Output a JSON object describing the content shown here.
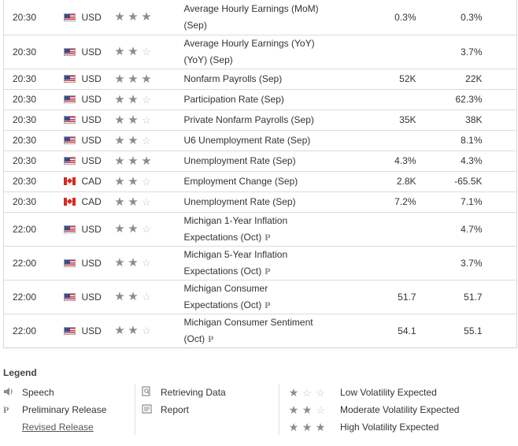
{
  "events": [
    {
      "time": "20:30",
      "currency": "USD",
      "flag": "us",
      "stars": 3,
      "event_l1": "Average Hourly Earnings (MoM)",
      "event_l2": "(Sep)",
      "prelim": false,
      "actual": "0.3%",
      "previous": "0.3%"
    },
    {
      "time": "20:30",
      "currency": "USD",
      "flag": "us",
      "stars": 2,
      "event_l1": "Average Hourly Earnings (YoY)",
      "event_l2": "(YoY) (Sep)",
      "prelim": false,
      "actual": "",
      "previous": "3.7%"
    },
    {
      "time": "20:30",
      "currency": "USD",
      "flag": "us",
      "stars": 3,
      "event_l1": "Nonfarm Payrolls (Sep)",
      "event_l2": "",
      "prelim": false,
      "actual": "52K",
      "previous": "22K"
    },
    {
      "time": "20:30",
      "currency": "USD",
      "flag": "us",
      "stars": 2,
      "event_l1": "Participation Rate (Sep)",
      "event_l2": "",
      "prelim": false,
      "actual": "",
      "previous": "62.3%"
    },
    {
      "time": "20:30",
      "currency": "USD",
      "flag": "us",
      "stars": 2,
      "event_l1": "Private Nonfarm Payrolls (Sep)",
      "event_l2": "",
      "prelim": false,
      "actual": "35K",
      "previous": "38K"
    },
    {
      "time": "20:30",
      "currency": "USD",
      "flag": "us",
      "stars": 2,
      "event_l1": "U6 Unemployment Rate (Sep)",
      "event_l2": "",
      "prelim": false,
      "actual": "",
      "previous": "8.1%"
    },
    {
      "time": "20:30",
      "currency": "USD",
      "flag": "us",
      "stars": 3,
      "event_l1": "Unemployment Rate (Sep)",
      "event_l2": "",
      "prelim": false,
      "actual": "4.3%",
      "previous": "4.3%"
    },
    {
      "time": "20:30",
      "currency": "CAD",
      "flag": "ca",
      "stars": 2,
      "event_l1": "Employment Change (Sep)",
      "event_l2": "",
      "prelim": false,
      "actual": "2.8K",
      "previous": "-65.5K"
    },
    {
      "time": "20:30",
      "currency": "CAD",
      "flag": "ca",
      "stars": 2,
      "event_l1": "Unemployment Rate (Sep)",
      "event_l2": "",
      "prelim": false,
      "actual": "7.2%",
      "previous": "7.1%"
    },
    {
      "time": "22:00",
      "currency": "USD",
      "flag": "us",
      "stars": 2,
      "event_l1": "Michigan 1-Year Inflation",
      "event_l2": "Expectations (Oct)",
      "prelim": true,
      "actual": "",
      "previous": "4.7%"
    },
    {
      "time": "22:00",
      "currency": "USD",
      "flag": "us",
      "stars": 2,
      "event_l1": "Michigan 5-Year Inflation",
      "event_l2": "Expectations (Oct)",
      "prelim": true,
      "actual": "",
      "previous": "3.7%"
    },
    {
      "time": "22:00",
      "currency": "USD",
      "flag": "us",
      "stars": 2,
      "event_l1": "Michigan Consumer",
      "event_l2": "Expectations (Oct)",
      "prelim": true,
      "actual": "51.7",
      "previous": "51.7"
    },
    {
      "time": "22:00",
      "currency": "USD",
      "flag": "us",
      "stars": 2,
      "event_l1": "Michigan Consumer Sentiment",
      "event_l2": "(Oct)",
      "prelim": true,
      "actual": "54.1",
      "previous": "55.1"
    }
  ],
  "legend": {
    "title": "Legend",
    "speech": "Speech",
    "preliminary": "Preliminary Release",
    "preliminary_symbol": "P",
    "revised": "Revised Release",
    "retrieving": "Retrieving Data",
    "report": "Report",
    "low": "Low Volatility Expected",
    "moderate": "Moderate Volatility Expected",
    "high": "High Volatility Expected"
  },
  "icons": {
    "speech": "speaker-icon",
    "retrieving": "document-search-icon",
    "report": "report-icon",
    "star": "star-icon"
  }
}
